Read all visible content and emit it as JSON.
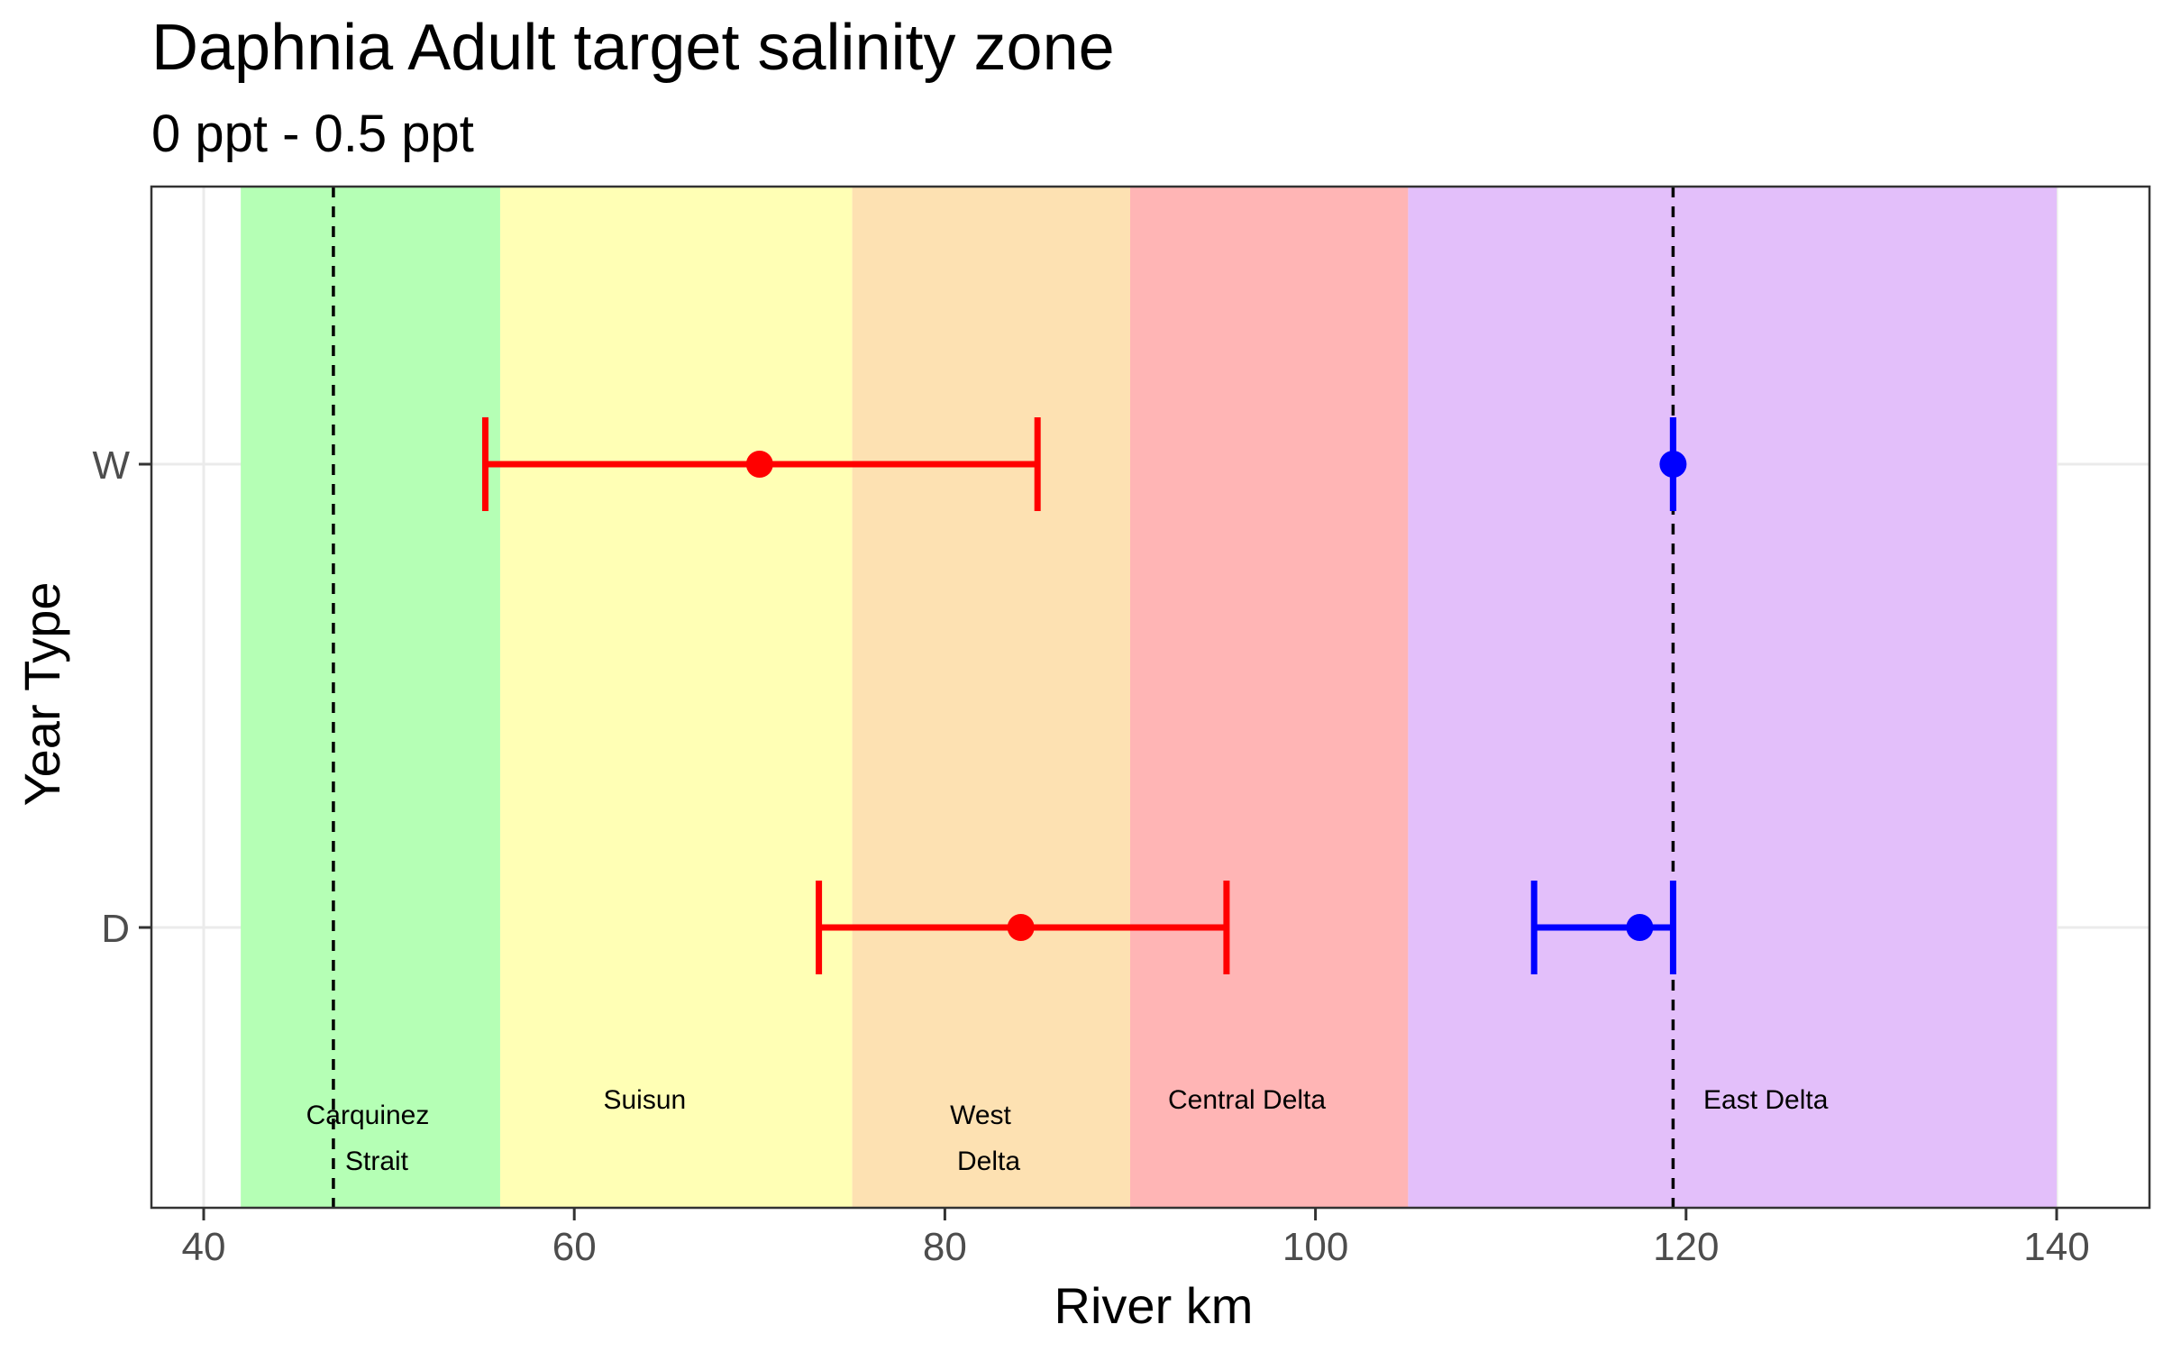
{
  "chart_data": {
    "type": "errorbar",
    "title": "Daphnia Adult  target salinity zone",
    "subtitle": "0 ppt - 0.5 ppt",
    "xlabel": "River km",
    "ylabel": "Year Type",
    "xlim": [
      37,
      141
    ],
    "x_ticks": [
      40,
      60,
      80,
      100,
      120,
      140
    ],
    "categories": [
      "D",
      "W"
    ],
    "grid": true,
    "regions": [
      {
        "label": [
          "Carquinez",
          "Strait"
        ],
        "x_start": 42,
        "x_end": 56,
        "color": "#b3ffb3"
      },
      {
        "label": [
          "Suisun"
        ],
        "x_start": 56,
        "x_end": 75,
        "color": "#ffffb3"
      },
      {
        "label": [
          "West",
          "Delta"
        ],
        "x_start": 75,
        "x_end": 90,
        "color": "#fde0b0"
      },
      {
        "label": [
          "Central Delta"
        ],
        "x_start": 90,
        "x_end": 105,
        "color": "#ffb3b3"
      },
      {
        "label": [
          "East Delta"
        ],
        "x_start": 105,
        "x_end": 140,
        "color": "#e2bdfa"
      }
    ],
    "reference_lines": [
      47,
      119.3
    ],
    "series": [
      {
        "color": "#ff0000",
        "points": [
          {
            "category": "W",
            "x": 70,
            "xmin": 55.2,
            "xmax": 85
          },
          {
            "category": "D",
            "x": 84.1,
            "xmin": 73.2,
            "xmax": 95.2
          }
        ]
      },
      {
        "color": "#0000ff",
        "points": [
          {
            "category": "W",
            "x": 119.3,
            "xmin": 119.3,
            "xmax": 119.3
          },
          {
            "category": "D",
            "x": 117.5,
            "xmin": 111.8,
            "xmax": 119.3
          }
        ]
      }
    ]
  }
}
